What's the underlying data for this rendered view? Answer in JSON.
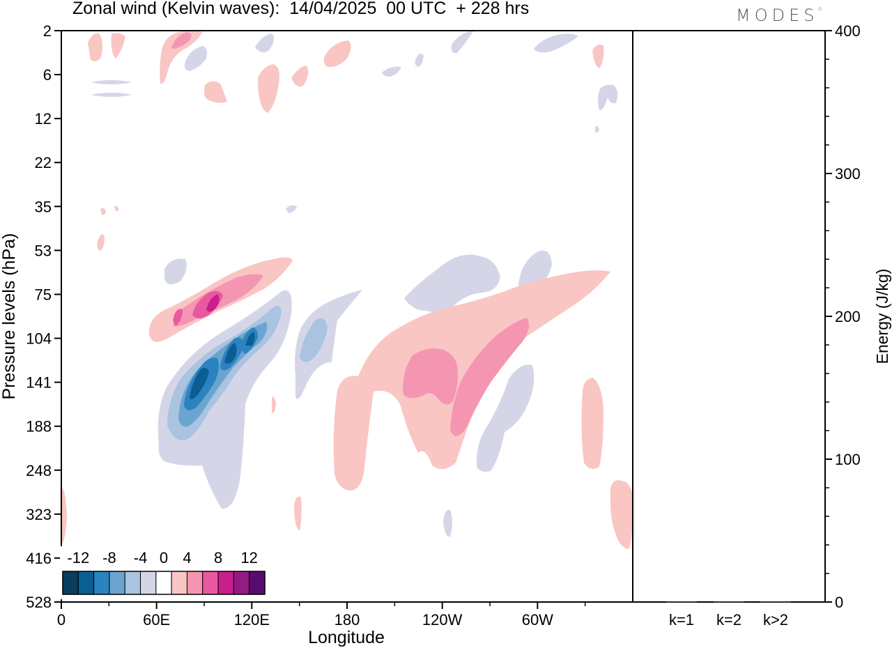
{
  "title": "Zonal wind (Kelvin waves):  14/04/2025  00 UTC  + 228 hrs",
  "logo_text": "MODES",
  "colors": {
    "neg": [
      "#0b3d5c",
      "#0b5e91",
      "#2b83c0",
      "#6ba4cf",
      "#a9c3e0",
      "#d4d6e8"
    ],
    "zero": "#ffffff",
    "pos": [
      "#f9c6c4",
      "#f496b2",
      "#e9599f",
      "#c81f8c",
      "#931b84",
      "#5a0c6e"
    ]
  },
  "chart_data": [
    {
      "type": "heatmap",
      "xlabel": "Longitude",
      "ylabel": "Pressure levels (hPa)",
      "x_ticks": [
        "0",
        "60E",
        "120E",
        "180",
        "120W",
        "60W"
      ],
      "x_tick_values": [
        0,
        60,
        120,
        180,
        240,
        300
      ],
      "xlim": [
        0,
        360
      ],
      "y_ticks": [
        "2",
        "6",
        "12",
        "22",
        "35",
        "53",
        "75",
        "104",
        "141",
        "188",
        "248",
        "323",
        "416",
        "528"
      ],
      "y_scale": "log-pressure, inverted",
      "colorbar": {
        "labels": [
          "-12",
          "-8",
          "-4",
          "0",
          "4",
          "8",
          "12"
        ],
        "bounds": [
          -14,
          -12,
          -10,
          -8,
          -6,
          -4,
          -2,
          2,
          4,
          6,
          8,
          10,
          12,
          14
        ]
      },
      "features": [
        {
          "sign": "negative",
          "peak": -12,
          "lon_range": [
            62,
            128
          ],
          "p_range": [
            75,
            250
          ],
          "note": "strong easterly anomaly tilted eastward with height"
        },
        {
          "sign": "positive",
          "peak": 8,
          "lon_range": [
            55,
            145
          ],
          "p_range": [
            53,
            104
          ]
        },
        {
          "sign": "negative",
          "peak": -6,
          "lon_range": [
            140,
            160
          ],
          "p_range": [
            75,
            200
          ]
        },
        {
          "sign": "positive",
          "peak": 6,
          "lon_range": [
            170,
            290
          ],
          "p_range": [
            53,
            270
          ]
        },
        {
          "sign": "negative",
          "peak": -4,
          "lon_range": [
            215,
            310
          ],
          "p_range": [
            53,
            270
          ]
        },
        {
          "sign": "positive",
          "peak": 4,
          "lon_range": [
            320,
            360
          ],
          "p_range": [
            130,
            416
          ]
        }
      ]
    },
    {
      "type": "bar",
      "categories": [
        "k=1",
        "k=2",
        "k>2"
      ],
      "values": [
        0.3,
        0.3,
        0.3
      ],
      "ylabel": "Energy (J/kg)",
      "ylim": [
        0,
        400
      ],
      "y_ticks": [
        "0",
        "100",
        "200",
        "300",
        "400"
      ]
    }
  ]
}
